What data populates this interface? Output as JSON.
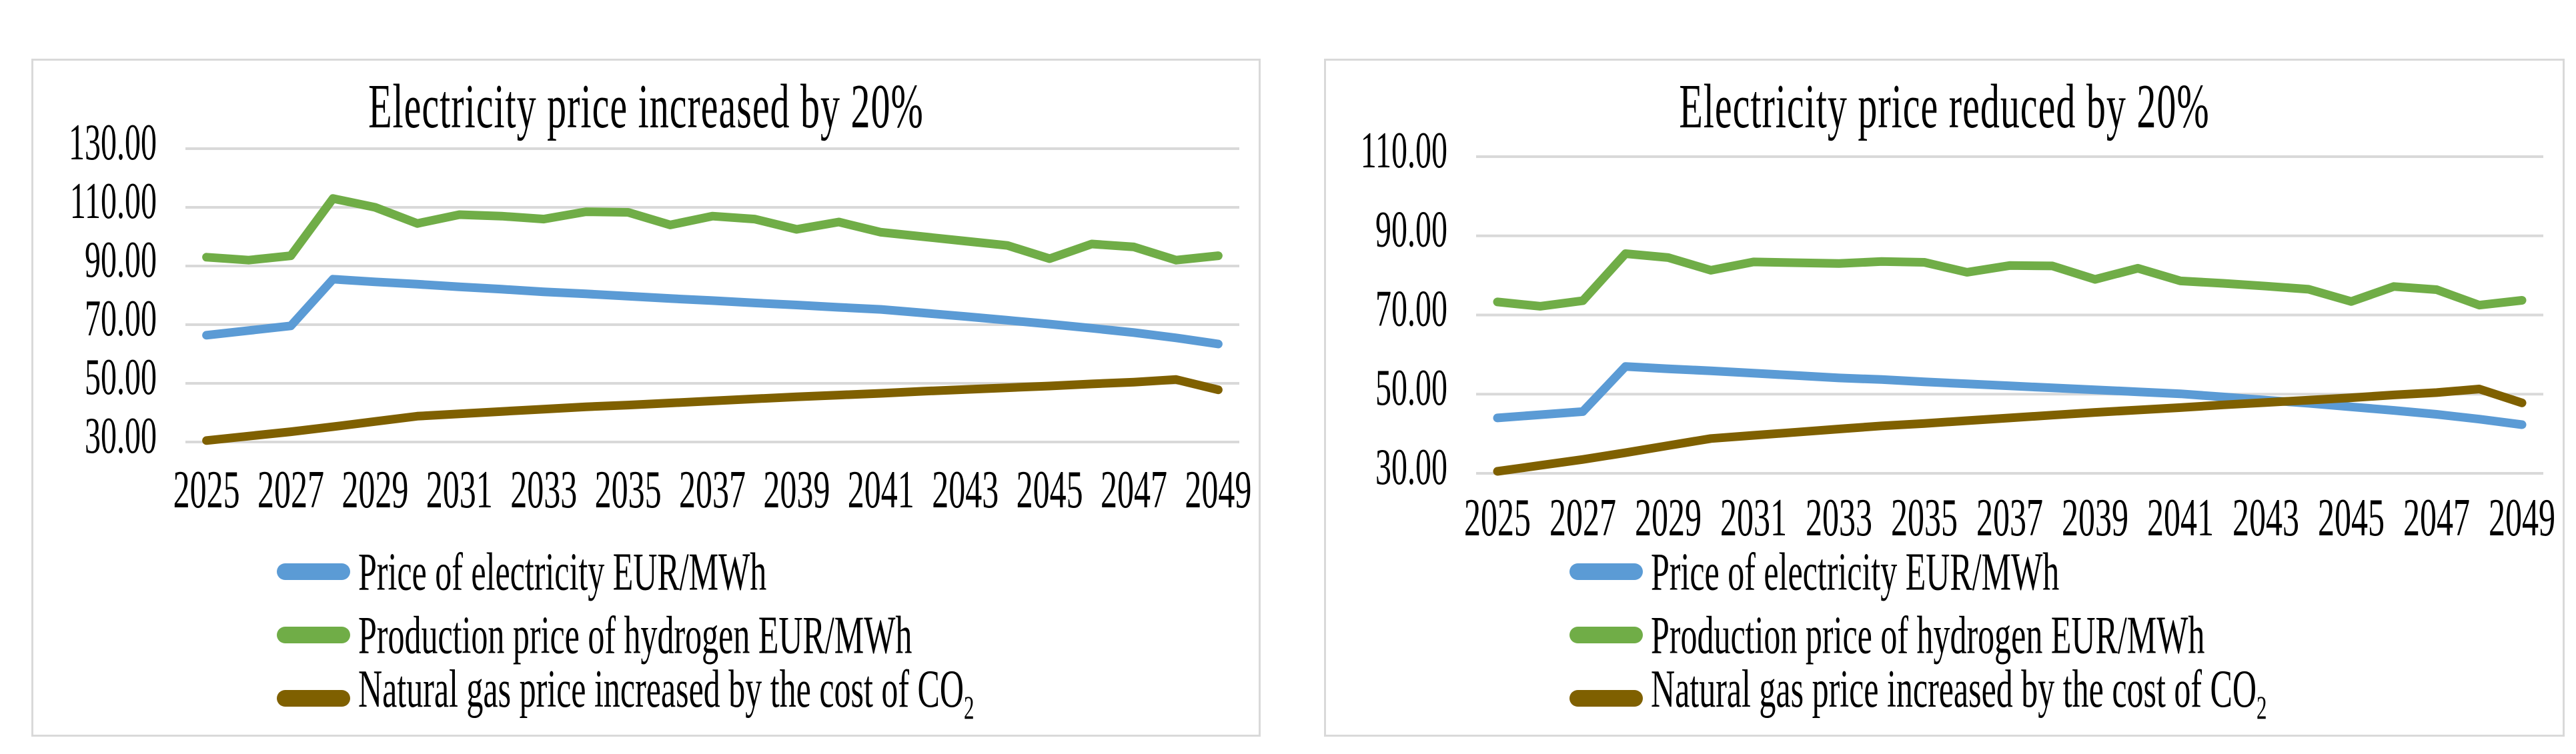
{
  "figure": {
    "background": "#ffffff",
    "panel_border_color": "#d9d9d9",
    "gridline_color": "#d9d9d9",
    "text_color": "#000000"
  },
  "legend": [
    {
      "label": "Price of electricity EUR/MWh",
      "sub": "",
      "color": "#5B9BD5"
    },
    {
      "label": "Production price of hydrogen EUR/MWh",
      "sub": "",
      "color": "#70AD47"
    },
    {
      "label": "Natural gas price increased by the cost of CO",
      "sub": "2",
      "color": "#7F6000"
    }
  ],
  "chart_data": [
    {
      "type": "line",
      "title": "Electricity price increased by 20%",
      "xlabel": "",
      "ylabel": "",
      "ylim": [
        30,
        130
      ],
      "grid": true,
      "legend_position": "bottom-left",
      "x": [
        2025,
        2026,
        2027,
        2028,
        2029,
        2030,
        2031,
        2032,
        2033,
        2034,
        2035,
        2036,
        2037,
        2038,
        2039,
        2040,
        2041,
        2042,
        2043,
        2044,
        2045,
        2046,
        2047,
        2048,
        2049
      ],
      "x_tick_labels": [
        "2025",
        "2027",
        "2029",
        "2031",
        "2033",
        "2035",
        "2037",
        "2039",
        "2041",
        "2043",
        "2045",
        "2047",
        "2049"
      ],
      "y_ticks": [
        130,
        110,
        90,
        70,
        50,
        30
      ],
      "y_tick_labels": [
        "130.00",
        "110.00",
        "90.00",
        "70.00",
        "50.00",
        "30.00"
      ],
      "series": [
        {
          "name": "Price of electricity EUR/MWh",
          "color": "#5B9BD5",
          "values": [
            66.4,
            68.0,
            69.6,
            85.5,
            84.6,
            83.8,
            82.9,
            82.1,
            81.2,
            80.5,
            79.7,
            78.9,
            78.2,
            77.4,
            76.7,
            75.9,
            75.2,
            74.0,
            72.8,
            71.5,
            70.2,
            68.8,
            67.3,
            65.5,
            63.4
          ]
        },
        {
          "name": "Production price of hydrogen EUR/MWh",
          "color": "#70AD47",
          "values": [
            93.0,
            92.0,
            93.5,
            113.0,
            110.0,
            104.5,
            107.5,
            107.0,
            106.0,
            108.5,
            108.3,
            104.0,
            107.0,
            106.0,
            102.5,
            105.0,
            101.5,
            100.0,
            98.5,
            97.0,
            92.5,
            97.5,
            96.5,
            92.0,
            93.5
          ]
        },
        {
          "name": "Natural gas price increased by the cost of CO₂",
          "color": "#7F6000",
          "values": [
            30.5,
            32.0,
            33.5,
            35.2,
            37.0,
            38.8,
            39.6,
            40.4,
            41.2,
            42.0,
            42.6,
            43.3,
            44.0,
            44.7,
            45.4,
            46.0,
            46.6,
            47.3,
            47.9,
            48.5,
            49.1,
            49.8,
            50.4,
            51.3,
            47.8
          ]
        }
      ]
    },
    {
      "type": "line",
      "title": "Electricity price reduced by 20%",
      "xlabel": "",
      "ylabel": "",
      "ylim": [
        30,
        110
      ],
      "grid": true,
      "legend_position": "bottom-left",
      "x": [
        2025,
        2026,
        2027,
        2028,
        2029,
        2030,
        2031,
        2032,
        2033,
        2034,
        2035,
        2036,
        2037,
        2038,
        2039,
        2040,
        2041,
        2042,
        2043,
        2044,
        2045,
        2046,
        2047,
        2048,
        2049
      ],
      "x_tick_labels": [
        "2025",
        "2027",
        "2029",
        "2031",
        "2033",
        "2035",
        "2037",
        "2039",
        "2041",
        "2043",
        "2045",
        "2047",
        "2049"
      ],
      "y_ticks": [
        110,
        90,
        70,
        50,
        30
      ],
      "y_tick_labels": [
        "110.00",
        "90.00",
        "70.00",
        "50.00",
        "30.00"
      ],
      "series": [
        {
          "name": "Price of electricity EUR/MWh",
          "color": "#5B9BD5",
          "values": [
            44.0,
            44.8,
            45.6,
            57.0,
            56.4,
            55.9,
            55.3,
            54.7,
            54.1,
            53.7,
            53.1,
            52.6,
            52.1,
            51.6,
            51.1,
            50.6,
            50.1,
            49.3,
            48.5,
            47.7,
            46.8,
            45.9,
            44.9,
            43.7,
            42.3
          ]
        },
        {
          "name": "Production price of hydrogen EUR/MWh",
          "color": "#70AD47",
          "values": [
            73.3,
            72.2,
            73.6,
            85.5,
            84.5,
            81.3,
            83.4,
            83.2,
            83.0,
            83.5,
            83.3,
            80.8,
            82.5,
            82.4,
            79.0,
            81.8,
            78.6,
            78.0,
            77.3,
            76.5,
            73.4,
            77.2,
            76.4,
            72.5,
            73.7
          ]
        },
        {
          "name": "Natural gas price increased by the cost of CO₂",
          "color": "#7F6000",
          "values": [
            30.5,
            32.0,
            33.5,
            35.2,
            37.0,
            38.8,
            39.6,
            40.4,
            41.2,
            42.0,
            42.6,
            43.3,
            44.0,
            44.7,
            45.4,
            46.0,
            46.6,
            47.3,
            47.9,
            48.5,
            49.1,
            49.8,
            50.4,
            51.3,
            47.8
          ]
        }
      ]
    }
  ]
}
